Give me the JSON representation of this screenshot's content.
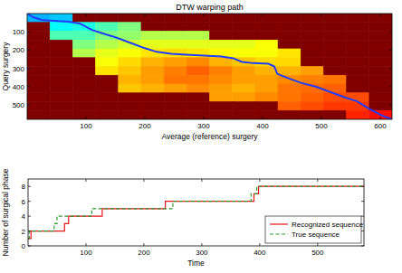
{
  "chart_data": [
    {
      "type": "heatmap",
      "title": "DTW warping path",
      "x_label": "Average (reference) surgery",
      "y_label": "Query surgery",
      "xlim": [
        0,
        620
      ],
      "ylim": [
        580,
        0
      ],
      "xticks": [
        100,
        200,
        300,
        400,
        500,
        600
      ],
      "yticks": [
        100,
        200,
        300,
        400,
        500
      ],
      "clim": [
        0,
        1
      ],
      "cells": [
        [
          0.3,
          0.32,
          1,
          1,
          1,
          1,
          1,
          1,
          1,
          1,
          1,
          1,
          1,
          1,
          1,
          1
        ],
        [
          1,
          0.38,
          0.4,
          0.45,
          0.5,
          1,
          1,
          1,
          1,
          1,
          1,
          1,
          1,
          1,
          1,
          1
        ],
        [
          1,
          0.45,
          0.45,
          0.5,
          0.52,
          0.55,
          0.55,
          0.55,
          1,
          1,
          1,
          1,
          1,
          1,
          1,
          1
        ],
        [
          1,
          1,
          0.5,
          0.55,
          0.58,
          0.6,
          0.6,
          0.6,
          0.6,
          0.6,
          0.62,
          1,
          1,
          1,
          1,
          1
        ],
        [
          1,
          1,
          0.55,
          0.6,
          0.62,
          0.65,
          0.66,
          0.65,
          0.63,
          0.62,
          0.62,
          0.65,
          1,
          1,
          1,
          1
        ],
        [
          1,
          1,
          1,
          0.62,
          0.66,
          0.7,
          0.72,
          0.74,
          0.7,
          0.68,
          0.66,
          0.66,
          1,
          1,
          1,
          1
        ],
        [
          1,
          1,
          1,
          0.65,
          0.68,
          0.72,
          0.75,
          0.78,
          0.75,
          0.72,
          0.7,
          0.7,
          0.72,
          1,
          1,
          1
        ],
        [
          1,
          1,
          1,
          1,
          0.7,
          0.72,
          0.76,
          0.76,
          0.74,
          0.72,
          0.72,
          0.74,
          0.75,
          0.76,
          1,
          1
        ],
        [
          1,
          1,
          1,
          1,
          0.68,
          0.7,
          0.72,
          0.74,
          0.72,
          0.7,
          0.72,
          0.76,
          0.77,
          0.78,
          1,
          1
        ],
        [
          1,
          1,
          1,
          1,
          1,
          1,
          1,
          1,
          0.72,
          0.72,
          0.74,
          0.76,
          0.78,
          0.8,
          0.8,
          1
        ],
        [
          1,
          1,
          1,
          1,
          1,
          1,
          1,
          1,
          1,
          1,
          1,
          0.78,
          0.8,
          0.82,
          0.82,
          1
        ],
        [
          1,
          1,
          1,
          1,
          1,
          1,
          1,
          1,
          1,
          1,
          1,
          1,
          1,
          1,
          0.84,
          0.86
        ]
      ],
      "series": [
        {
          "type": "line",
          "color": "#1f3cff",
          "line_style": "solid",
          "x": [
            1,
            10,
            25,
            45,
            70,
            90,
            110,
            130,
            150,
            175,
            200,
            220,
            245,
            270,
            300,
            330,
            350,
            365,
            385,
            410,
            420,
            425,
            440,
            465,
            490,
            515,
            540,
            560,
            580,
            600,
            620
          ],
          "values": [
            1,
            20,
            35,
            40,
            45,
            55,
            90,
            110,
            130,
            160,
            190,
            210,
            220,
            225,
            230,
            235,
            245,
            265,
            272,
            275,
            290,
            330,
            350,
            380,
            400,
            430,
            460,
            480,
            520,
            555,
            580
          ]
        }
      ]
    },
    {
      "type": "line",
      "x_label": "Time",
      "y_label": "Number of surgical phase",
      "xlim": [
        0,
        580
      ],
      "ylim": [
        0,
        9
      ],
      "xticks": [
        100,
        200,
        300,
        400,
        500
      ],
      "yticks": [
        0,
        2,
        4,
        6,
        8
      ],
      "legend": "lower right",
      "series": [
        {
          "name": "Recognized sequence",
          "color": "#e8141c",
          "line_style": "solid",
          "x": [
            0,
            5,
            5,
            63,
            63,
            70,
            70,
            128,
            128,
            237,
            237,
            390,
            390,
            398,
            398,
            580
          ],
          "values": [
            1,
            1,
            2,
            2,
            3,
            3,
            4,
            4,
            5,
            5,
            6,
            6,
            7,
            7,
            8,
            8
          ]
        },
        {
          "name": "True sequence",
          "color": "#2e9b2e",
          "line_style": "dashed",
          "x": [
            0,
            2,
            2,
            45,
            45,
            50,
            50,
            110,
            110,
            250,
            250,
            385,
            385,
            395,
            395,
            580
          ],
          "values": [
            1,
            1,
            2,
            2,
            3,
            3,
            4,
            4,
            5,
            5,
            6,
            6,
            7,
            7,
            8,
            8
          ]
        }
      ]
    }
  ]
}
